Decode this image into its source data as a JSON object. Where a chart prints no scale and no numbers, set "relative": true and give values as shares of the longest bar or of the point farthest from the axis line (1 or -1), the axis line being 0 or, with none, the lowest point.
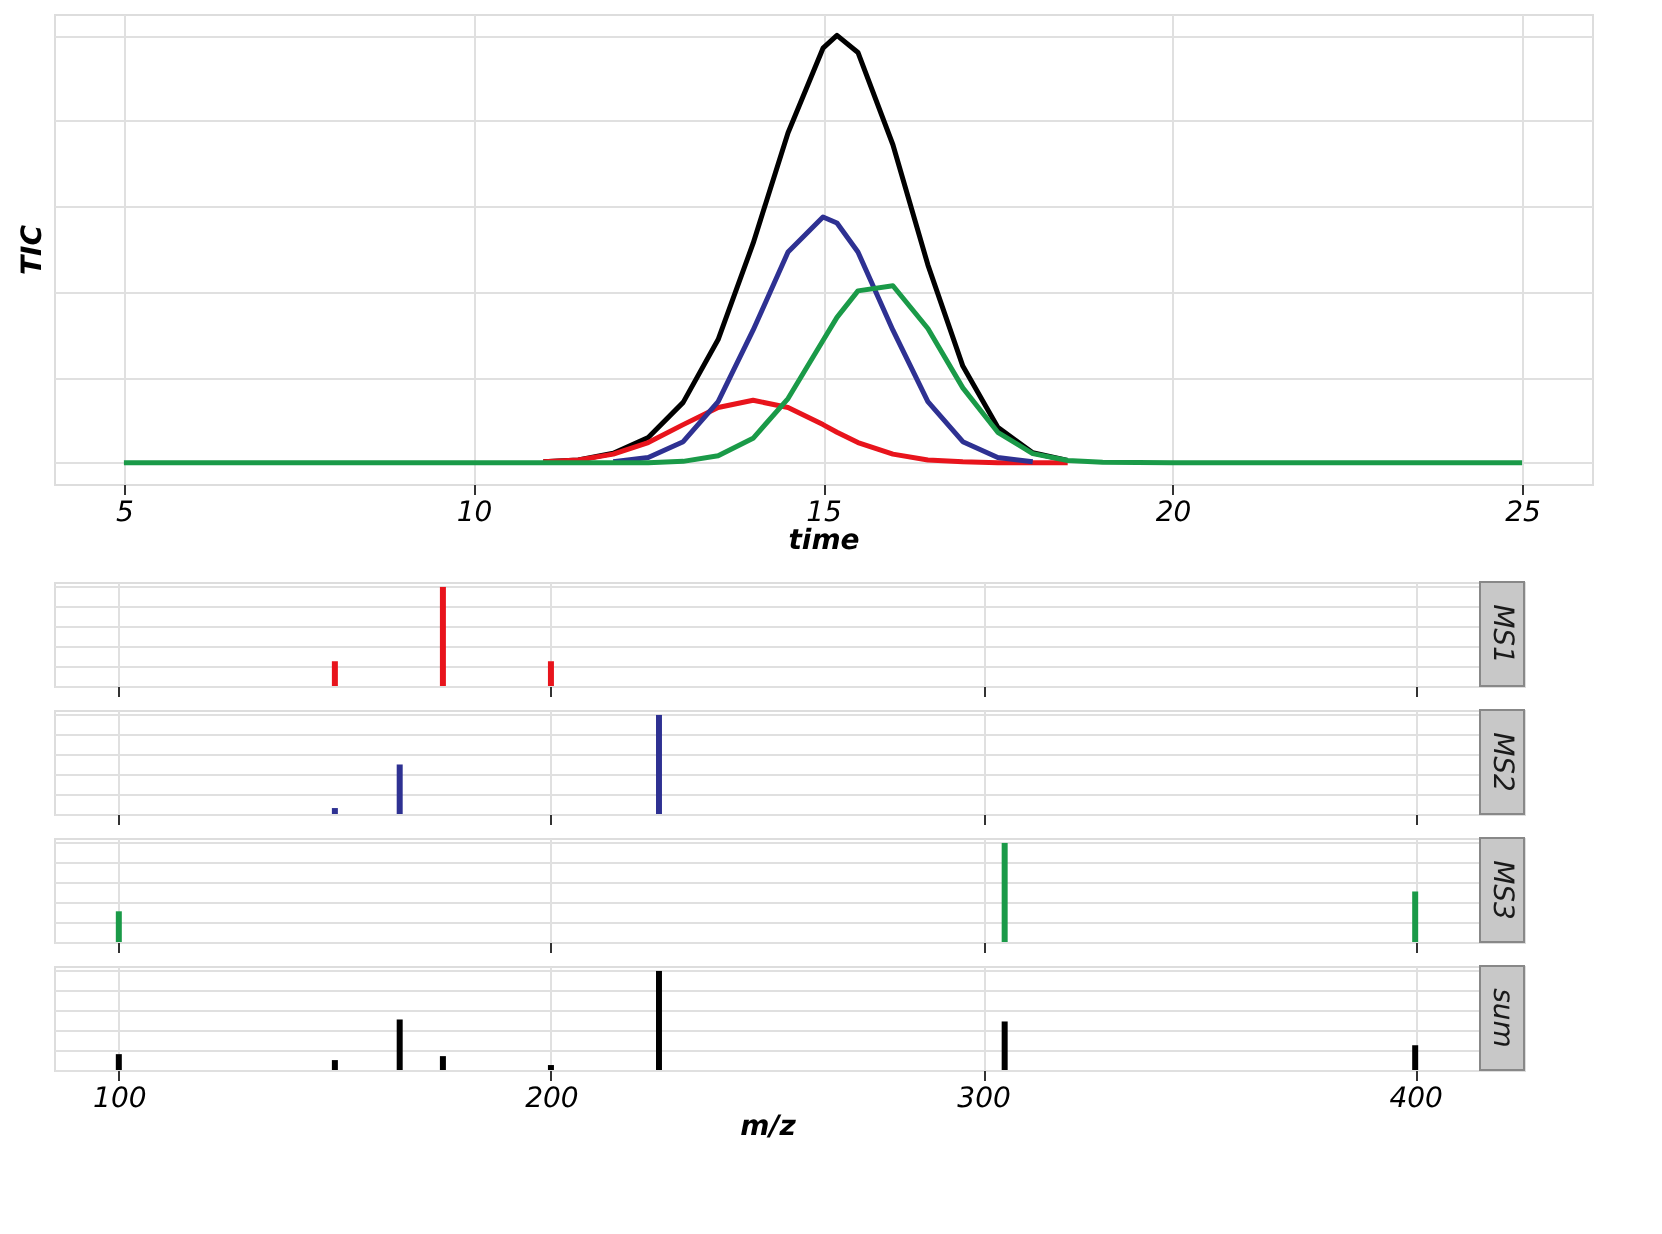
{
  "chart_data": [
    {
      "type": "line",
      "xlabel": "time",
      "ylabel": "TIC",
      "relative": true,
      "grid": true,
      "tick_labels": "x",
      "line_style": "solid",
      "marker": "none",
      "xlim": [
        4,
        26
      ],
      "xticks": [
        5,
        10,
        15,
        20,
        25
      ],
      "x": [
        5,
        10,
        11,
        11.5,
        12,
        12.5,
        13,
        13.5,
        14,
        14.5,
        15,
        15.2,
        15.5,
        16,
        16.5,
        17,
        17.5,
        18,
        18.5,
        19,
        20,
        25
      ],
      "series": [
        {
          "color": "#000000",
          "values": [
            null,
            null,
            0.002,
            0.006,
            0.022,
            0.059,
            0.141,
            0.288,
            0.513,
            0.772,
            0.97,
            1.0,
            0.96,
            0.744,
            0.463,
            0.226,
            0.083,
            0.023,
            0.005,
            null,
            null,
            null
          ]
        },
        {
          "color": "#e8141c",
          "values": [
            null,
            null,
            0.002,
            0.006,
            0.02,
            0.047,
            0.089,
            0.129,
            0.146,
            0.129,
            0.089,
            0.071,
            0.047,
            0.02,
            0.006,
            0.002,
            0,
            0,
            0,
            null,
            null,
            null
          ]
        },
        {
          "color": "#2e3192",
          "values": [
            null,
            null,
            null,
            null,
            0.002,
            0.012,
            0.049,
            0.143,
            0.31,
            0.493,
            0.575,
            0.561,
            0.493,
            0.31,
            0.143,
            0.049,
            0.012,
            0.002,
            null,
            null,
            null,
            null
          ]
        },
        {
          "color": "#1a9a48",
          "values": [
            0,
            0,
            0,
            0,
            0,
            0,
            0.003,
            0.016,
            0.057,
            0.15,
            0.286,
            0.34,
            0.402,
            0.414,
            0.314,
            0.175,
            0.071,
            0.021,
            0.005,
            0.001,
            0,
            0
          ]
        }
      ]
    },
    {
      "type": "bar",
      "title": "MS1",
      "relative": true,
      "grid": true,
      "tick_labels": false,
      "xlim": [
        85,
        415
      ],
      "xticks": [
        100,
        200,
        300,
        400
      ],
      "x": [
        150,
        175,
        200
      ],
      "values": [
        0.25,
        1.0,
        0.25
      ],
      "color": "#e8141c"
    },
    {
      "type": "bar",
      "title": "MS2",
      "relative": true,
      "grid": true,
      "tick_labels": false,
      "xlim": [
        85,
        415
      ],
      "xticks": [
        100,
        200,
        300,
        400
      ],
      "x": [
        150,
        165,
        225
      ],
      "values": [
        0.06,
        0.5,
        1.0
      ],
      "color": "#2e3192"
    },
    {
      "type": "bar",
      "title": "MS3",
      "relative": true,
      "grid": true,
      "tick_labels": false,
      "xlim": [
        85,
        415
      ],
      "xticks": [
        100,
        200,
        300,
        400
      ],
      "x": [
        100,
        305,
        400
      ],
      "values": [
        0.31,
        1.0,
        0.51
      ],
      "color": "#1a9a48"
    },
    {
      "type": "bar",
      "title": "sum",
      "xlabel": "m/z",
      "relative": true,
      "grid": true,
      "tick_labels": "x",
      "xlim": [
        85,
        415
      ],
      "xticks": [
        100,
        200,
        300,
        400
      ],
      "x": [
        100,
        150,
        165,
        175,
        200,
        225,
        305,
        400
      ],
      "values": [
        0.16,
        0.1,
        0.51,
        0.14,
        0.05,
        1.0,
        0.49,
        0.25
      ],
      "color": "#000000"
    }
  ]
}
